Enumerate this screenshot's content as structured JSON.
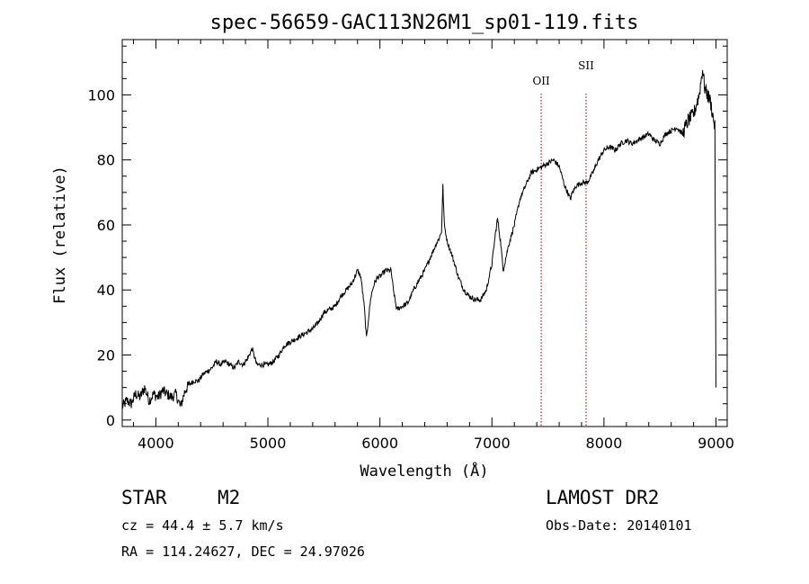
{
  "chart_data": {
    "type": "line",
    "title": "spec-56659-GAC113N26M1_sp01-119.fits",
    "xlabel": "Wavelength (Å)",
    "ylabel": "Flux (relative)",
    "xlim": [
      3700,
      9100
    ],
    "ylim": [
      -2,
      117
    ],
    "xticks": [
      4000,
      5000,
      6000,
      7000,
      8000,
      9000
    ],
    "yticks": [
      0,
      20,
      40,
      60,
      80,
      100
    ],
    "grid": false,
    "lines": [
      {
        "name": "OII",
        "x": 7440
      },
      {
        "name": "SII",
        "x": 7840
      }
    ],
    "series": [
      {
        "name": "spectrum",
        "x": [
          3700,
          3740,
          3780,
          3820,
          3860,
          3900,
          3940,
          3980,
          4020,
          4060,
          4100,
          4140,
          4180,
          4220,
          4260,
          4300,
          4340,
          4380,
          4420,
          4460,
          4500,
          4540,
          4580,
          4620,
          4660,
          4700,
          4740,
          4780,
          4820,
          4860,
          4900,
          4950,
          5000,
          5050,
          5100,
          5150,
          5200,
          5250,
          5300,
          5350,
          5400,
          5450,
          5500,
          5550,
          5600,
          5650,
          5700,
          5750,
          5800,
          5830,
          5860,
          5880,
          5900,
          5920,
          5950,
          5980,
          6000,
          6050,
          6100,
          6120,
          6150,
          6200,
          6250,
          6300,
          6350,
          6400,
          6450,
          6500,
          6530,
          6550,
          6562,
          6575,
          6600,
          6650,
          6700,
          6750,
          6800,
          6850,
          6900,
          6950,
          7000,
          7030,
          7050,
          7080,
          7100,
          7150,
          7200,
          7250,
          7300,
          7350,
          7400,
          7450,
          7500,
          7550,
          7600,
          7650,
          7700,
          7720,
          7750,
          7800,
          7850,
          7900,
          7950,
          8000,
          8050,
          8100,
          8150,
          8200,
          8250,
          8300,
          8350,
          8400,
          8450,
          8500,
          8550,
          8600,
          8650,
          8700,
          8750,
          8800,
          8850,
          8880,
          8900,
          8950,
          8990,
          9000
        ],
        "values": [
          4,
          6,
          5,
          8,
          7,
          10,
          6,
          8,
          7,
          9,
          8,
          7,
          8,
          4,
          9,
          11,
          12,
          12,
          14,
          15,
          16,
          18,
          17,
          18,
          17,
          16,
          18,
          17,
          19,
          22,
          17,
          17,
          17,
          18,
          20,
          23,
          24,
          25,
          26,
          27,
          28,
          30,
          33,
          34,
          35,
          38,
          40,
          42,
          46,
          44,
          35,
          25,
          32,
          38,
          42,
          44,
          44,
          46,
          46,
          40,
          34,
          35,
          36,
          40,
          43,
          46,
          50,
          54,
          56,
          58,
          72,
          60,
          55,
          50,
          44,
          40,
          38,
          37,
          37,
          40,
          48,
          57,
          62,
          54,
          46,
          54,
          60,
          68,
          72,
          76,
          77,
          78,
          79,
          80,
          78,
          72,
          68,
          70,
          72,
          73,
          73,
          76,
          80,
          83,
          84,
          83,
          85,
          86,
          85,
          86,
          87,
          88,
          86,
          85,
          88,
          89,
          90,
          88,
          92,
          94,
          100,
          108,
          102,
          98,
          90,
          10
        ]
      }
    ]
  },
  "info": {
    "object_type": "STAR",
    "subclass": "M2",
    "cz": "cz = 44.4 ± 5.7 km/s",
    "coords": "RA = 114.24627, DEC =  24.97026",
    "survey": "LAMOST DR2",
    "obs_date": "Obs-Date: 20140101"
  }
}
